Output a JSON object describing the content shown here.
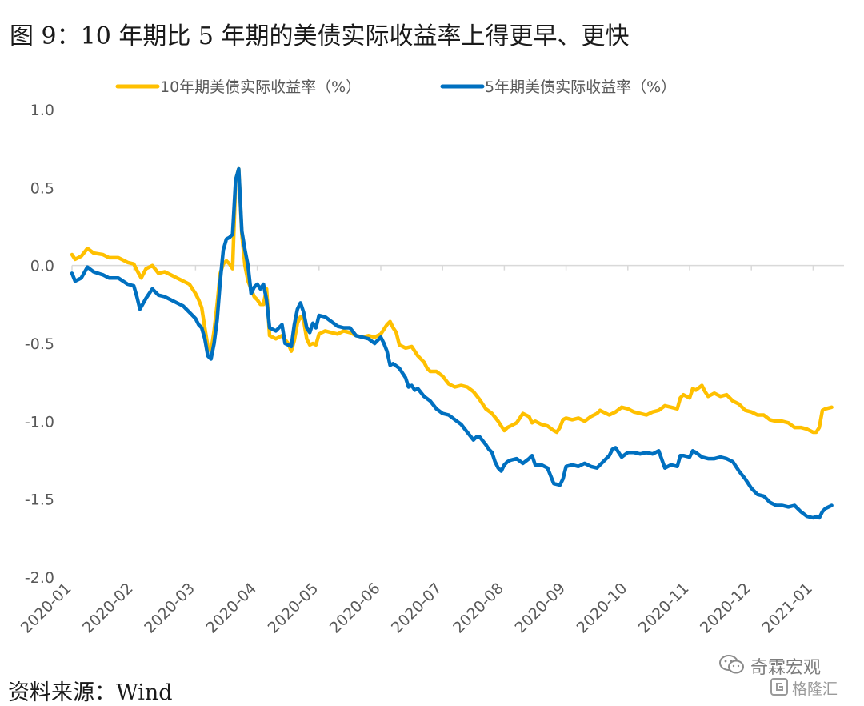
{
  "figure": {
    "title": "图 9：10 年期比 5 年期的美债实际收益率上得更早、更快",
    "source": "资料来源：Wind",
    "watermark": {
      "line1": "奇霖宏观",
      "line2": "格隆汇"
    }
  },
  "chart_data": {
    "type": "line",
    "title": "",
    "xlabel": "",
    "ylabel": "",
    "ylim": [
      -2.0,
      1.0
    ],
    "yticks": [
      1.0,
      0.5,
      0.0,
      -0.5,
      -1.0,
      -1.5,
      -2.0
    ],
    "ytick_labels": [
      "1.0",
      "0.5",
      "0.0",
      "-0.5",
      "-1.0",
      "-1.5",
      "-2.0"
    ],
    "xticks": [
      "2020-01",
      "2020-02",
      "2020-03",
      "2020-04",
      "2020-05",
      "2020-06",
      "2020-07",
      "2020-08",
      "2020-09",
      "2020-10",
      "2020-11",
      "2020-12",
      "2021-01"
    ],
    "x_unit": "month index (0 = 2020-01)",
    "xlim": [
      0,
      12.35
    ],
    "legend_position": "top",
    "grid": false,
    "series": [
      {
        "name": "10年期美债实际收益率（%）",
        "color": "#FFC000",
        "points": [
          [
            0.0,
            0.07
          ],
          [
            0.05,
            0.04
          ],
          [
            0.15,
            0.06
          ],
          [
            0.25,
            0.11
          ],
          [
            0.35,
            0.08
          ],
          [
            0.5,
            0.07
          ],
          [
            0.6,
            0.05
          ],
          [
            0.75,
            0.05
          ],
          [
            0.9,
            0.02
          ],
          [
            1.0,
            0.01
          ],
          [
            1.05,
            -0.03
          ],
          [
            1.12,
            -0.08
          ],
          [
            1.2,
            -0.02
          ],
          [
            1.3,
            0.0
          ],
          [
            1.4,
            -0.05
          ],
          [
            1.5,
            -0.04
          ],
          [
            1.6,
            -0.06
          ],
          [
            1.7,
            -0.08
          ],
          [
            1.8,
            -0.1
          ],
          [
            1.9,
            -0.12
          ],
          [
            2.0,
            -0.18
          ],
          [
            2.05,
            -0.22
          ],
          [
            2.1,
            -0.27
          ],
          [
            2.15,
            -0.4
          ],
          [
            2.2,
            -0.52
          ],
          [
            2.25,
            -0.55
          ],
          [
            2.3,
            -0.42
          ],
          [
            2.35,
            -0.25
          ],
          [
            2.4,
            -0.05
          ],
          [
            2.45,
            0.01
          ],
          [
            2.5,
            0.03
          ],
          [
            2.55,
            0.01
          ],
          [
            2.6,
            -0.02
          ],
          [
            2.65,
            0.55
          ],
          [
            2.7,
            0.62
          ],
          [
            2.75,
            0.2
          ],
          [
            2.8,
            0.0
          ],
          [
            2.85,
            -0.1
          ],
          [
            2.9,
            -0.15
          ],
          [
            2.95,
            -0.2
          ],
          [
            3.0,
            -0.22
          ],
          [
            3.05,
            -0.25
          ],
          [
            3.1,
            -0.25
          ],
          [
            3.15,
            -0.15
          ],
          [
            3.2,
            -0.45
          ],
          [
            3.3,
            -0.47
          ],
          [
            3.4,
            -0.45
          ],
          [
            3.5,
            -0.5
          ],
          [
            3.55,
            -0.55
          ],
          [
            3.6,
            -0.48
          ],
          [
            3.65,
            -0.37
          ],
          [
            3.7,
            -0.33
          ],
          [
            3.75,
            -0.35
          ],
          [
            3.8,
            -0.47
          ],
          [
            3.85,
            -0.51
          ],
          [
            3.9,
            -0.5
          ],
          [
            3.95,
            -0.51
          ],
          [
            4.0,
            -0.44
          ],
          [
            4.1,
            -0.42
          ],
          [
            4.2,
            -0.43
          ],
          [
            4.3,
            -0.44
          ],
          [
            4.4,
            -0.42
          ],
          [
            4.5,
            -0.43
          ],
          [
            4.6,
            -0.45
          ],
          [
            4.7,
            -0.46
          ],
          [
            4.8,
            -0.45
          ],
          [
            4.9,
            -0.46
          ],
          [
            5.0,
            -0.44
          ],
          [
            5.1,
            -0.38
          ],
          [
            5.15,
            -0.36
          ],
          [
            5.2,
            -0.4
          ],
          [
            5.25,
            -0.43
          ],
          [
            5.3,
            -0.51
          ],
          [
            5.4,
            -0.53
          ],
          [
            5.5,
            -0.52
          ],
          [
            5.6,
            -0.58
          ],
          [
            5.7,
            -0.62
          ],
          [
            5.75,
            -0.66
          ],
          [
            5.8,
            -0.68
          ],
          [
            5.9,
            -0.68
          ],
          [
            6.0,
            -0.71
          ],
          [
            6.1,
            -0.76
          ],
          [
            6.2,
            -0.78
          ],
          [
            6.3,
            -0.77
          ],
          [
            6.4,
            -0.78
          ],
          [
            6.5,
            -0.81
          ],
          [
            6.6,
            -0.86
          ],
          [
            6.7,
            -0.92
          ],
          [
            6.8,
            -0.95
          ],
          [
            6.9,
            -1.0
          ],
          [
            6.95,
            -1.03
          ],
          [
            7.0,
            -1.06
          ],
          [
            7.05,
            -1.04
          ],
          [
            7.1,
            -1.03
          ],
          [
            7.2,
            -1.01
          ],
          [
            7.3,
            -0.95
          ],
          [
            7.4,
            -0.97
          ],
          [
            7.45,
            -1.01
          ],
          [
            7.5,
            -1.0
          ],
          [
            7.6,
            -1.02
          ],
          [
            7.7,
            -1.03
          ],
          [
            7.8,
            -1.06
          ],
          [
            7.85,
            -1.07
          ],
          [
            7.9,
            -1.04
          ],
          [
            7.95,
            -0.99
          ],
          [
            8.0,
            -0.98
          ],
          [
            8.1,
            -0.99
          ],
          [
            8.2,
            -0.98
          ],
          [
            8.3,
            -1.0
          ],
          [
            8.4,
            -0.97
          ],
          [
            8.5,
            -0.95
          ],
          [
            8.55,
            -0.93
          ],
          [
            8.6,
            -0.94
          ],
          [
            8.7,
            -0.96
          ],
          [
            8.8,
            -0.94
          ],
          [
            8.9,
            -0.91
          ],
          [
            9.0,
            -0.92
          ],
          [
            9.1,
            -0.94
          ],
          [
            9.2,
            -0.95
          ],
          [
            9.3,
            -0.96
          ],
          [
            9.4,
            -0.94
          ],
          [
            9.5,
            -0.93
          ],
          [
            9.6,
            -0.9
          ],
          [
            9.7,
            -0.91
          ],
          [
            9.8,
            -0.92
          ],
          [
            9.85,
            -0.85
          ],
          [
            9.9,
            -0.83
          ],
          [
            10.0,
            -0.85
          ],
          [
            10.05,
            -0.79
          ],
          [
            10.1,
            -0.8
          ],
          [
            10.2,
            -0.77
          ],
          [
            10.25,
            -0.81
          ],
          [
            10.3,
            -0.84
          ],
          [
            10.4,
            -0.82
          ],
          [
            10.5,
            -0.84
          ],
          [
            10.6,
            -0.83
          ],
          [
            10.7,
            -0.87
          ],
          [
            10.8,
            -0.89
          ],
          [
            10.9,
            -0.93
          ],
          [
            11.0,
            -0.94
          ],
          [
            11.1,
            -0.96
          ],
          [
            11.2,
            -0.96
          ],
          [
            11.3,
            -0.99
          ],
          [
            11.4,
            -1.0
          ],
          [
            11.5,
            -1.0
          ],
          [
            11.6,
            -1.01
          ],
          [
            11.7,
            -1.04
          ],
          [
            11.8,
            -1.04
          ],
          [
            11.9,
            -1.05
          ],
          [
            12.0,
            -1.07
          ],
          [
            12.05,
            -1.07
          ],
          [
            12.1,
            -1.04
          ],
          [
            12.15,
            -0.93
          ],
          [
            12.2,
            -0.92
          ],
          [
            12.3,
            -0.91
          ]
        ]
      },
      {
        "name": "5年期美债实际收益率（%）",
        "color": "#0070C0",
        "points": [
          [
            0.0,
            -0.05
          ],
          [
            0.05,
            -0.1
          ],
          [
            0.15,
            -0.08
          ],
          [
            0.25,
            -0.01
          ],
          [
            0.35,
            -0.04
          ],
          [
            0.5,
            -0.06
          ],
          [
            0.6,
            -0.08
          ],
          [
            0.75,
            -0.08
          ],
          [
            0.9,
            -0.12
          ],
          [
            1.0,
            -0.13
          ],
          [
            1.05,
            -0.2
          ],
          [
            1.1,
            -0.28
          ],
          [
            1.2,
            -0.21
          ],
          [
            1.3,
            -0.15
          ],
          [
            1.4,
            -0.19
          ],
          [
            1.5,
            -0.2
          ],
          [
            1.6,
            -0.22
          ],
          [
            1.7,
            -0.24
          ],
          [
            1.8,
            -0.26
          ],
          [
            1.9,
            -0.3
          ],
          [
            2.0,
            -0.34
          ],
          [
            2.05,
            -0.38
          ],
          [
            2.1,
            -0.4
          ],
          [
            2.15,
            -0.47
          ],
          [
            2.2,
            -0.58
          ],
          [
            2.25,
            -0.6
          ],
          [
            2.3,
            -0.5
          ],
          [
            2.35,
            -0.35
          ],
          [
            2.4,
            -0.1
          ],
          [
            2.45,
            0.1
          ],
          [
            2.5,
            0.17
          ],
          [
            2.55,
            0.18
          ],
          [
            2.6,
            0.2
          ],
          [
            2.65,
            0.55
          ],
          [
            2.7,
            0.62
          ],
          [
            2.75,
            0.22
          ],
          [
            2.8,
            0.1
          ],
          [
            2.85,
            0.0
          ],
          [
            2.9,
            -0.18
          ],
          [
            2.95,
            -0.14
          ],
          [
            3.0,
            -0.12
          ],
          [
            3.05,
            -0.15
          ],
          [
            3.1,
            -0.12
          ],
          [
            3.15,
            -0.22
          ],
          [
            3.2,
            -0.4
          ],
          [
            3.3,
            -0.42
          ],
          [
            3.4,
            -0.38
          ],
          [
            3.45,
            -0.5
          ],
          [
            3.55,
            -0.52
          ],
          [
            3.6,
            -0.38
          ],
          [
            3.65,
            -0.28
          ],
          [
            3.7,
            -0.24
          ],
          [
            3.75,
            -0.3
          ],
          [
            3.8,
            -0.4
          ],
          [
            3.85,
            -0.43
          ],
          [
            3.9,
            -0.37
          ],
          [
            3.95,
            -0.4
          ],
          [
            4.0,
            -0.32
          ],
          [
            4.1,
            -0.33
          ],
          [
            4.2,
            -0.36
          ],
          [
            4.3,
            -0.39
          ],
          [
            4.4,
            -0.4
          ],
          [
            4.5,
            -0.4
          ],
          [
            4.6,
            -0.45
          ],
          [
            4.7,
            -0.46
          ],
          [
            4.8,
            -0.47
          ],
          [
            4.9,
            -0.5
          ],
          [
            5.0,
            -0.46
          ],
          [
            5.05,
            -0.5
          ],
          [
            5.1,
            -0.55
          ],
          [
            5.15,
            -0.64
          ],
          [
            5.2,
            -0.63
          ],
          [
            5.3,
            -0.66
          ],
          [
            5.4,
            -0.72
          ],
          [
            5.45,
            -0.78
          ],
          [
            5.5,
            -0.77
          ],
          [
            5.55,
            -0.8
          ],
          [
            5.6,
            -0.79
          ],
          [
            5.7,
            -0.84
          ],
          [
            5.8,
            -0.87
          ],
          [
            5.9,
            -0.92
          ],
          [
            6.0,
            -0.95
          ],
          [
            6.1,
            -0.96
          ],
          [
            6.2,
            -0.99
          ],
          [
            6.3,
            -1.02
          ],
          [
            6.4,
            -1.07
          ],
          [
            6.5,
            -1.12
          ],
          [
            6.55,
            -1.1
          ],
          [
            6.6,
            -1.1
          ],
          [
            6.7,
            -1.15
          ],
          [
            6.75,
            -1.18
          ],
          [
            6.8,
            -1.2
          ],
          [
            6.85,
            -1.26
          ],
          [
            6.9,
            -1.3
          ],
          [
            6.95,
            -1.32
          ],
          [
            7.0,
            -1.28
          ],
          [
            7.05,
            -1.26
          ],
          [
            7.1,
            -1.25
          ],
          [
            7.2,
            -1.24
          ],
          [
            7.3,
            -1.27
          ],
          [
            7.4,
            -1.24
          ],
          [
            7.45,
            -1.22
          ],
          [
            7.5,
            -1.28
          ],
          [
            7.6,
            -1.28
          ],
          [
            7.7,
            -1.3
          ],
          [
            7.8,
            -1.4
          ],
          [
            7.9,
            -1.41
          ],
          [
            7.95,
            -1.37
          ],
          [
            8.0,
            -1.29
          ],
          [
            8.1,
            -1.28
          ],
          [
            8.2,
            -1.29
          ],
          [
            8.3,
            -1.27
          ],
          [
            8.4,
            -1.29
          ],
          [
            8.5,
            -1.3
          ],
          [
            8.6,
            -1.26
          ],
          [
            8.7,
            -1.22
          ],
          [
            8.75,
            -1.18
          ],
          [
            8.8,
            -1.17
          ],
          [
            8.9,
            -1.23
          ],
          [
            9.0,
            -1.2
          ],
          [
            9.1,
            -1.2
          ],
          [
            9.2,
            -1.21
          ],
          [
            9.3,
            -1.2
          ],
          [
            9.4,
            -1.21
          ],
          [
            9.5,
            -1.19
          ],
          [
            9.6,
            -1.3
          ],
          [
            9.7,
            -1.28
          ],
          [
            9.8,
            -1.29
          ],
          [
            9.85,
            -1.22
          ],
          [
            9.9,
            -1.22
          ],
          [
            10.0,
            -1.23
          ],
          [
            10.05,
            -1.19
          ],
          [
            10.1,
            -1.2
          ],
          [
            10.2,
            -1.23
          ],
          [
            10.3,
            -1.24
          ],
          [
            10.4,
            -1.24
          ],
          [
            10.5,
            -1.23
          ],
          [
            10.6,
            -1.24
          ],
          [
            10.7,
            -1.26
          ],
          [
            10.8,
            -1.32
          ],
          [
            10.9,
            -1.37
          ],
          [
            11.0,
            -1.43
          ],
          [
            11.1,
            -1.47
          ],
          [
            11.2,
            -1.48
          ],
          [
            11.3,
            -1.52
          ],
          [
            11.4,
            -1.54
          ],
          [
            11.5,
            -1.54
          ],
          [
            11.6,
            -1.55
          ],
          [
            11.7,
            -1.54
          ],
          [
            11.8,
            -1.58
          ],
          [
            11.9,
            -1.61
          ],
          [
            12.0,
            -1.62
          ],
          [
            12.05,
            -1.61
          ],
          [
            12.1,
            -1.62
          ],
          [
            12.15,
            -1.58
          ],
          [
            12.2,
            -1.56
          ],
          [
            12.3,
            -1.54
          ]
        ]
      }
    ]
  }
}
